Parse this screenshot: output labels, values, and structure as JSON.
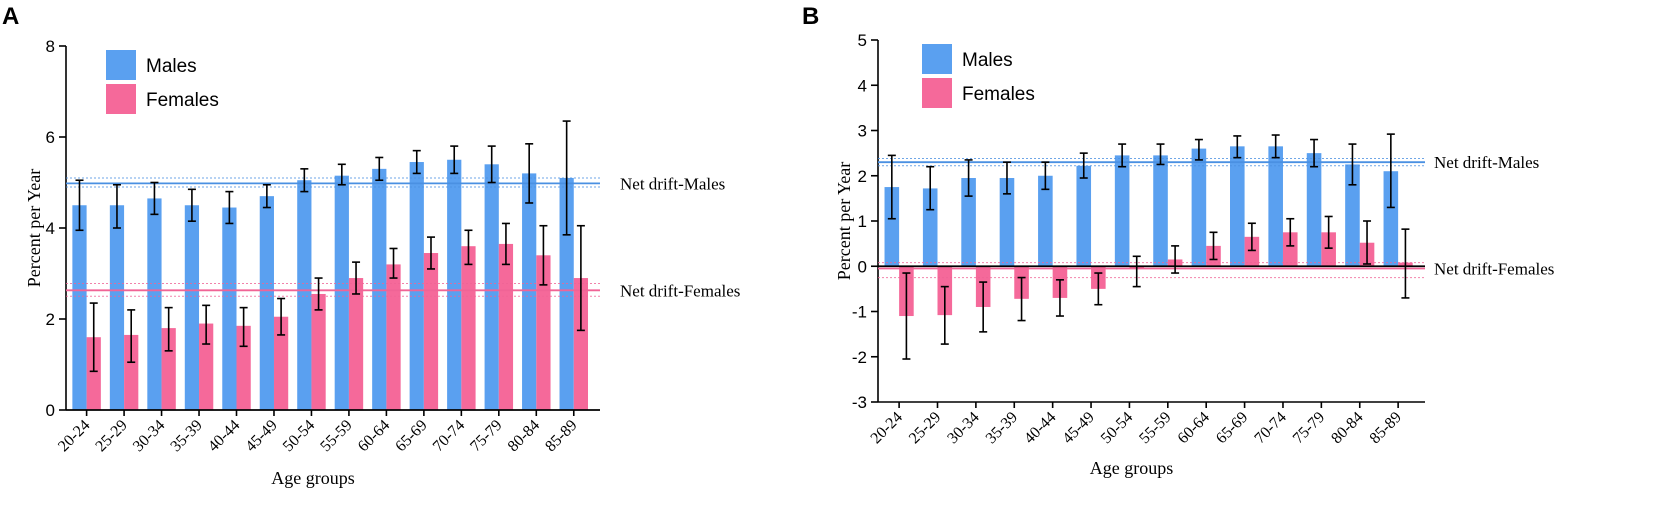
{
  "colors": {
    "males": "#5aa0f0",
    "females": "#f5699a",
    "males_line": "#4a90e2",
    "females_line": "#f06496",
    "axis": "#000000",
    "errorbar": "#000000"
  },
  "chart_data": [
    {
      "type": "bar",
      "panel_label": "A",
      "title": "",
      "xlabel": "Age groups",
      "ylabel": "Percent per Year",
      "ylim": [
        0,
        8
      ],
      "yticks": [
        0,
        2,
        4,
        6,
        8
      ],
      "categories": [
        "20-24",
        "25-29",
        "30-34",
        "35-39",
        "40-44",
        "45-49",
        "50-54",
        "55-59",
        "60-64",
        "65-69",
        "70-74",
        "75-79",
        "80-84",
        "85-89"
      ],
      "series": [
        {
          "name": "Males",
          "values": [
            4.5,
            4.5,
            4.65,
            4.5,
            4.45,
            4.7,
            5.05,
            5.15,
            5.3,
            5.45,
            5.5,
            5.4,
            5.2,
            5.1
          ],
          "lower": [
            3.95,
            4.0,
            4.3,
            4.15,
            4.1,
            4.45,
            4.8,
            4.95,
            5.05,
            5.2,
            5.2,
            5.0,
            4.55,
            3.85
          ],
          "upper": [
            5.05,
            4.95,
            5.0,
            4.85,
            4.8,
            4.95,
            5.3,
            5.4,
            5.55,
            5.7,
            5.8,
            5.8,
            5.85,
            6.35
          ]
        },
        {
          "name": "Females",
          "values": [
            1.6,
            1.65,
            1.8,
            1.9,
            1.85,
            2.05,
            2.55,
            2.9,
            3.2,
            3.45,
            3.6,
            3.65,
            3.4,
            2.9
          ],
          "lower": [
            0.85,
            1.05,
            1.3,
            1.45,
            1.4,
            1.65,
            2.2,
            2.55,
            2.9,
            3.1,
            3.2,
            3.2,
            2.75,
            1.75
          ],
          "upper": [
            2.35,
            2.2,
            2.25,
            2.3,
            2.25,
            2.45,
            2.9,
            3.25,
            3.55,
            3.8,
            3.95,
            4.1,
            4.05,
            4.05
          ]
        }
      ],
      "net_drift": [
        {
          "name": "Males",
          "value": 4.98,
          "lower": 4.9,
          "upper": 5.1,
          "label": "Net drift-Males"
        },
        {
          "name": "Females",
          "value": 2.63,
          "lower": 2.5,
          "upper": 2.78,
          "label": "Net drift-Females"
        }
      ],
      "legend": [
        "Males",
        "Females"
      ],
      "legend_position": "top-left"
    },
    {
      "type": "bar",
      "panel_label": "B",
      "title": "",
      "xlabel": "Age groups",
      "ylabel": "Percent per Year",
      "ylim": [
        -3,
        5
      ],
      "yticks": [
        -3,
        -2,
        -1,
        0,
        1,
        2,
        3,
        4,
        5
      ],
      "categories": [
        "20-24",
        "25-29",
        "30-34",
        "35-39",
        "40-44",
        "45-49",
        "50-54",
        "55-59",
        "60-64",
        "65-69",
        "70-74",
        "75-79",
        "80-84",
        "85-89"
      ],
      "series": [
        {
          "name": "Males",
          "values": [
            1.75,
            1.72,
            1.95,
            1.95,
            2.0,
            2.22,
            2.45,
            2.45,
            2.6,
            2.65,
            2.65,
            2.5,
            2.25,
            2.1
          ],
          "lower": [
            1.05,
            1.25,
            1.55,
            1.6,
            1.7,
            1.95,
            2.2,
            2.25,
            2.35,
            2.4,
            2.4,
            2.2,
            1.8,
            1.3
          ],
          "upper": [
            2.45,
            2.2,
            2.35,
            2.3,
            2.3,
            2.5,
            2.7,
            2.7,
            2.8,
            2.88,
            2.9,
            2.8,
            2.7,
            2.92
          ]
        },
        {
          "name": "Females",
          "values": [
            -1.1,
            -1.08,
            -0.9,
            -0.72,
            -0.7,
            -0.5,
            -0.05,
            0.15,
            0.45,
            0.65,
            0.75,
            0.75,
            0.52,
            0.08
          ],
          "lower": [
            -2.05,
            -1.72,
            -1.45,
            -1.2,
            -1.1,
            -0.85,
            -0.45,
            -0.15,
            0.15,
            0.35,
            0.45,
            0.4,
            0.05,
            -0.7
          ],
          "upper": [
            -0.15,
            -0.45,
            -0.35,
            -0.25,
            -0.3,
            -0.15,
            0.22,
            0.45,
            0.75,
            0.95,
            1.05,
            1.1,
            1.0,
            0.82
          ]
        }
      ],
      "net_drift": [
        {
          "name": "Males",
          "value": 2.3,
          "lower": 2.22,
          "upper": 2.38,
          "label": "Net drift-Males"
        },
        {
          "name": "Females",
          "value": -0.05,
          "lower": -0.25,
          "upper": 0.08,
          "label": "Net drift-Females"
        }
      ],
      "legend": [
        "Males",
        "Females"
      ],
      "legend_position": "top-left"
    }
  ]
}
